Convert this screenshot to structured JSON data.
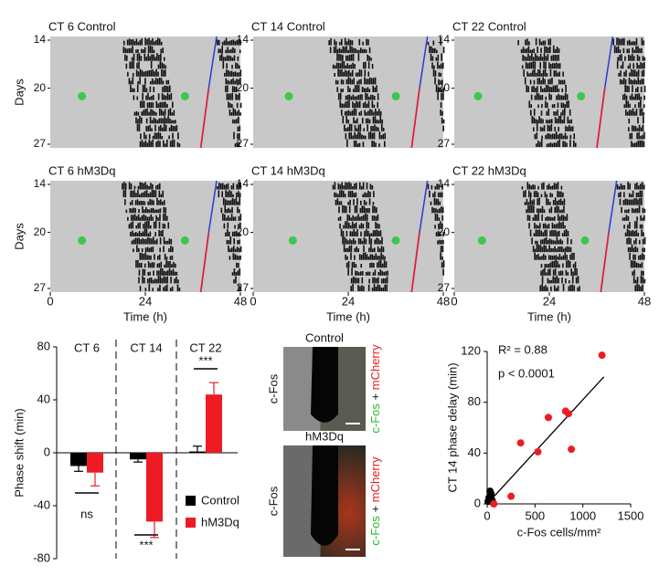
{
  "chart_data": [
    {
      "type": "actogram",
      "xlabel": "Time (h)",
      "ylabel": "Days",
      "panels": [
        "CT 6 Control",
        "CT 14 Control",
        "CT 22 Control",
        "CT 6 hM3Dq",
        "CT 14 hM3Dq",
        "CT 22 hM3Dq"
      ],
      "xlim": [
        0,
        48
      ],
      "xticks": [
        0,
        24,
        48
      ],
      "ylim": [
        14,
        27
      ],
      "yticks": [
        14,
        20,
        27
      ]
    },
    {
      "type": "bar",
      "ylabel": "Phase shift (min)",
      "categories": [
        "CT 6",
        "CT 14",
        "CT 22"
      ],
      "series": [
        {
          "name": "Control",
          "color": "#000000",
          "values": [
            -10,
            -5,
            1
          ],
          "errors": [
            4,
            2,
            4
          ]
        },
        {
          "name": "hM3Dq",
          "color": "#ed1c24",
          "values": [
            -15,
            -52,
            44
          ],
          "errors": [
            10,
            12,
            9
          ]
        }
      ],
      "annotations": [
        "ns",
        "***",
        "***"
      ],
      "ylim": [
        -80,
        80
      ],
      "yticks": [
        -80,
        -40,
        0,
        40,
        80
      ]
    },
    {
      "type": "scatter",
      "xlabel": "c-Fos cells/mm²",
      "ylabel": "CT 14 phase delay (min)",
      "annotations": [
        "R² = 0.88",
        "p < 0.0001"
      ],
      "series": [
        {
          "name": "Control",
          "color": "#000000",
          "x": [
            30,
            40,
            20,
            50,
            10,
            60
          ],
          "values": [
            10,
            8,
            5,
            3,
            2,
            1
          ]
        },
        {
          "name": "hM3Dq",
          "color": "#ed1c24",
          "x": [
            1200,
            640,
            820,
            850,
            350,
            530,
            880,
            250,
            70
          ],
          "values": [
            117,
            68,
            73,
            71,
            48,
            41,
            43,
            6,
            0
          ]
        }
      ],
      "fit": {
        "x": [
          0,
          1220
        ],
        "values": [
          0,
          100
        ]
      },
      "xlim": [
        0,
        1500
      ],
      "xticks": [
        0,
        500,
        1000,
        1500
      ],
      "ylim": [
        0,
        120
      ],
      "yticks": [
        0,
        40,
        80,
        120
      ]
    }
  ],
  "image_panel": {
    "titles": [
      "Control",
      "hM3Dq"
    ],
    "side_label": "c-Fos",
    "merge_label": [
      "c-Fos",
      "+",
      "mCherry"
    ]
  }
}
